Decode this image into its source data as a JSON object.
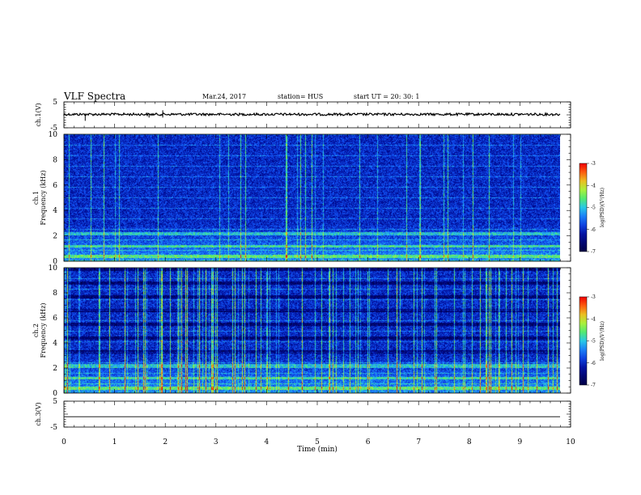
{
  "header": {
    "title": "VLF Spectra",
    "date": "Mar.24, 2017",
    "station": "station= HUS",
    "start": "start  UT =   20: 30: 1"
  },
  "colors": {
    "spectrogram_low": "#000060",
    "spectrogram_mid": "#1a64ff",
    "spectrogram_high": "#2adfd0",
    "spectrogram_peak": "#7df24a",
    "trace": "#000000"
  },
  "chart_data": [
    {
      "type": "line",
      "panel": "ch1-waveform",
      "ylabel": "ch.1(V)",
      "ylim": [
        -5,
        5
      ],
      "yticks": [
        "5",
        "-5"
      ],
      "xlim": [
        0,
        10
      ],
      "series": [
        {
          "values_note_x": [
            0,
            9.8
          ],
          "level": 0.2
        }
      ]
    },
    {
      "type": "heatmap",
      "panel": "ch1-spectrogram",
      "ylabel": [
        "ch.1",
        "Frequency (kHz)"
      ],
      "ylim": [
        0,
        10
      ],
      "yticks": [
        "0",
        "2",
        "4",
        "6",
        "8",
        "10"
      ],
      "xlim": [
        0,
        10
      ],
      "data_xmax": 9.8,
      "colorbar": {
        "label": "log(PSD)(V²/Hz)",
        "range": [
          -7,
          -3
        ],
        "ticks": [
          "-3",
          "-4",
          "-5",
          "-6",
          "-7"
        ]
      }
    },
    {
      "type": "heatmap",
      "panel": "ch2-spectrogram",
      "ylabel": [
        "ch.2",
        "Frequency (kHz)"
      ],
      "ylim": [
        0,
        10
      ],
      "yticks": [
        "0",
        "2",
        "4",
        "6",
        "8",
        "10"
      ],
      "xlim": [
        0,
        10
      ],
      "data_xmax": 9.8,
      "colorbar": {
        "label": "log(PSD)(V²/Hz)",
        "range": [
          -7,
          -3
        ],
        "ticks": [
          "-3",
          "-4",
          "-5",
          "-6",
          "-7"
        ]
      }
    },
    {
      "type": "line",
      "panel": "ch3-waveform",
      "ylabel": "ch.3(V)",
      "ylim": [
        -5,
        5
      ],
      "yticks": [
        "5",
        "-5"
      ],
      "xlim": [
        0,
        10
      ],
      "series": [
        {
          "values_note_x": [
            0,
            9.8
          ],
          "level": -1.0
        }
      ]
    }
  ],
  "xaxis": {
    "label": "Time (min)",
    "ticks": [
      "0",
      "1",
      "2",
      "3",
      "4",
      "5",
      "6",
      "7",
      "8",
      "9",
      "10"
    ]
  }
}
